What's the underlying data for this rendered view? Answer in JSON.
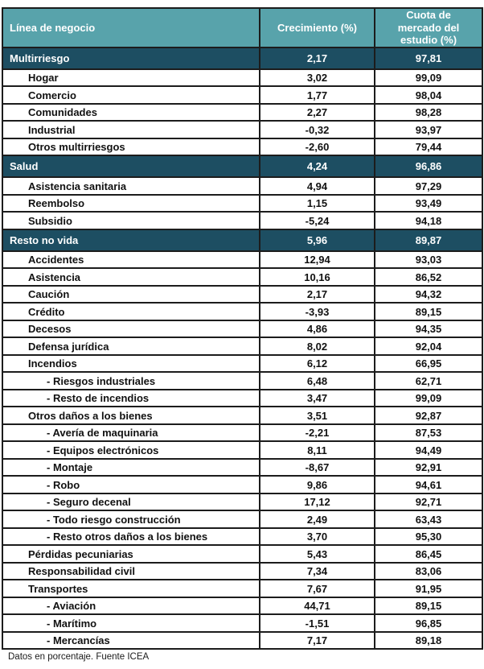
{
  "table": {
    "header": {
      "col1": "Línea de negocio",
      "col2": "Crecimiento (%)",
      "col3": "Cuota de mercado del estudio (%)"
    },
    "rows": [
      {
        "label": "Multirriesgo",
        "level": 0,
        "section": true,
        "growth": "2,17",
        "share": "97,81"
      },
      {
        "label": "Hogar",
        "level": 1,
        "section": false,
        "growth": "3,02",
        "share": "99,09"
      },
      {
        "label": "Comercio",
        "level": 1,
        "section": false,
        "growth": "1,77",
        "share": "98,04"
      },
      {
        "label": "Comunidades",
        "level": 1,
        "section": false,
        "growth": "2,27",
        "share": "98,28"
      },
      {
        "label": "Industrial",
        "level": 1,
        "section": false,
        "growth": "-0,32",
        "share": "93,97"
      },
      {
        "label": "Otros multirriesgos",
        "level": 1,
        "section": false,
        "growth": "-2,60",
        "share": "79,44"
      },
      {
        "label": "Salud",
        "level": 0,
        "section": true,
        "growth": "4,24",
        "share": "96,86"
      },
      {
        "label": "Asistencia sanitaria",
        "level": 1,
        "section": false,
        "growth": "4,94",
        "share": "97,29"
      },
      {
        "label": "Reembolso",
        "level": 1,
        "section": false,
        "growth": "1,15",
        "share": "93,49"
      },
      {
        "label": "Subsidio",
        "level": 1,
        "section": false,
        "growth": "-5,24",
        "share": "94,18"
      },
      {
        "label": "Resto no vida",
        "level": 0,
        "section": true,
        "growth": "5,96",
        "share": "89,87"
      },
      {
        "label": "Accidentes",
        "level": 1,
        "section": false,
        "growth": "12,94",
        "share": "93,03"
      },
      {
        "label": "Asistencia",
        "level": 1,
        "section": false,
        "growth": "10,16",
        "share": "86,52"
      },
      {
        "label": "Caución",
        "level": 1,
        "section": false,
        "growth": "2,17",
        "share": "94,32"
      },
      {
        "label": "Crédito",
        "level": 1,
        "section": false,
        "growth": "-3,93",
        "share": "89,15"
      },
      {
        "label": "Decesos",
        "level": 1,
        "section": false,
        "growth": "4,86",
        "share": "94,35"
      },
      {
        "label": "Defensa jurídica",
        "level": 1,
        "section": false,
        "growth": "8,02",
        "share": "92,04"
      },
      {
        "label": "Incendios",
        "level": 1,
        "section": false,
        "growth": "6,12",
        "share": "66,95"
      },
      {
        "label": "- Riesgos industriales",
        "level": 2,
        "section": false,
        "growth": "6,48",
        "share": "62,71"
      },
      {
        "label": "- Resto de incendios",
        "level": 2,
        "section": false,
        "growth": "3,47",
        "share": "99,09"
      },
      {
        "label": "Otros daños a los bienes",
        "level": 1,
        "section": false,
        "growth": "3,51",
        "share": "92,87"
      },
      {
        "label": "- Avería de maquinaria",
        "level": 2,
        "section": false,
        "growth": "-2,21",
        "share": "87,53"
      },
      {
        "label": "- Equipos electrónicos",
        "level": 2,
        "section": false,
        "growth": "8,11",
        "share": "94,49"
      },
      {
        "label": "- Montaje",
        "level": 2,
        "section": false,
        "growth": "-8,67",
        "share": "92,91"
      },
      {
        "label": "- Robo",
        "level": 2,
        "section": false,
        "growth": "9,86",
        "share": "94,61"
      },
      {
        "label": "- Seguro decenal",
        "level": 2,
        "section": false,
        "growth": "17,12",
        "share": "92,71"
      },
      {
        "label": "- Todo riesgo construcción",
        "level": 2,
        "section": false,
        "growth": "2,49",
        "share": "63,43"
      },
      {
        "label": "- Resto otros daños a los bienes",
        "level": 2,
        "section": false,
        "growth": "3,70",
        "share": "95,30"
      },
      {
        "label": "Pérdidas pecuniarias",
        "level": 1,
        "section": false,
        "growth": "5,43",
        "share": "86,45"
      },
      {
        "label": "Responsabilidad civil",
        "level": 1,
        "section": false,
        "growth": "7,34",
        "share": "83,06"
      },
      {
        "label": "Transportes",
        "level": 1,
        "section": false,
        "growth": "7,67",
        "share": "91,95"
      },
      {
        "label": "- Aviación",
        "level": 2,
        "section": false,
        "growth": "44,71",
        "share": "89,15"
      },
      {
        "label": "- Marítimo",
        "level": 2,
        "section": false,
        "growth": "-1,51",
        "share": "96,85"
      },
      {
        "label": "- Mercancías",
        "level": 2,
        "section": false,
        "growth": "7,17",
        "share": "89,18"
      }
    ]
  },
  "footer_note": "Datos en porcentaje. Fuente ICEA",
  "colors": {
    "header_bg": "#58A3AB",
    "section_bg": "#1D4E62",
    "border": "#1C1C1C",
    "header_text": "#FFFFFF",
    "data_text": "#111111"
  },
  "chart_data": {
    "type": "table",
    "title": "",
    "columns": [
      "Línea de negocio",
      "Crecimiento (%)",
      "Cuota de mercado del estudio (%)"
    ],
    "rows": [
      [
        "Multirriesgo",
        2.17,
        97.81
      ],
      [
        "Hogar",
        3.02,
        99.09
      ],
      [
        "Comercio",
        1.77,
        98.04
      ],
      [
        "Comunidades",
        2.27,
        98.28
      ],
      [
        "Industrial",
        -0.32,
        93.97
      ],
      [
        "Otros multirriesgos",
        -2.6,
        79.44
      ],
      [
        "Salud",
        4.24,
        96.86
      ],
      [
        "Asistencia sanitaria",
        4.94,
        97.29
      ],
      [
        "Reembolso",
        1.15,
        93.49
      ],
      [
        "Subsidio",
        -5.24,
        94.18
      ],
      [
        "Resto no vida",
        5.96,
        89.87
      ],
      [
        "Accidentes",
        12.94,
        93.03
      ],
      [
        "Asistencia",
        10.16,
        86.52
      ],
      [
        "Caución",
        2.17,
        94.32
      ],
      [
        "Crédito",
        -3.93,
        89.15
      ],
      [
        "Decesos",
        4.86,
        94.35
      ],
      [
        "Defensa jurídica",
        8.02,
        92.04
      ],
      [
        "Incendios",
        6.12,
        66.95
      ],
      [
        "Riesgos industriales",
        6.48,
        62.71
      ],
      [
        "Resto de incendios",
        3.47,
        99.09
      ],
      [
        "Otros daños a los bienes",
        3.51,
        92.87
      ],
      [
        "Avería de maquinaria",
        -2.21,
        87.53
      ],
      [
        "Equipos electrónicos",
        8.11,
        94.49
      ],
      [
        "Montaje",
        -8.67,
        92.91
      ],
      [
        "Robo",
        9.86,
        94.61
      ],
      [
        "Seguro decenal",
        17.12,
        92.71
      ],
      [
        "Todo riesgo construcción",
        2.49,
        63.43
      ],
      [
        "Resto otros daños a los bienes",
        3.7,
        95.3
      ],
      [
        "Pérdidas pecuniarias",
        5.43,
        86.45
      ],
      [
        "Responsabilidad civil",
        7.34,
        83.06
      ],
      [
        "Transportes",
        7.67,
        91.95
      ],
      [
        "Aviación",
        44.71,
        89.15
      ],
      [
        "Marítimo",
        -1.51,
        96.85
      ],
      [
        "Mercancías",
        7.17,
        89.18
      ]
    ],
    "footnote": "Datos en porcentaje. Fuente ICEA"
  }
}
